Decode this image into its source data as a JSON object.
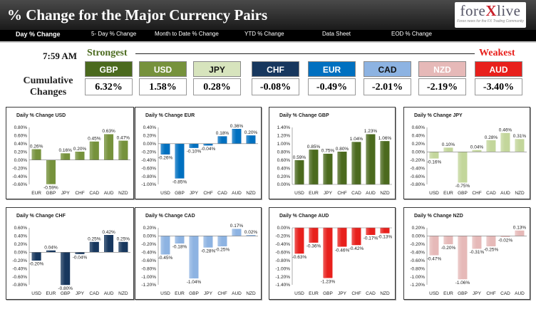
{
  "header": {
    "title": "% Change for the Major Currency Pairs"
  },
  "logo": {
    "prefix": "fore",
    "x": "X",
    "suffix": "live",
    "tagline": "Forex news for the FX Trading Community"
  },
  "nav": [
    "Day % Change",
    "5- Day % Change",
    "Month to Date % Change",
    "YTD % Change",
    "Data Sheet",
    "EOD % Change"
  ],
  "time": "7:59 AM",
  "strongest_label": "Strongest",
  "weakest_label": "Weakest",
  "cumulative_label": "Cumulative Changes",
  "cards": [
    {
      "name": "GBP",
      "value": "6.32%",
      "color": "#4b6a1e",
      "text": "#ffffff"
    },
    {
      "name": "USD",
      "value": "1.58%",
      "color": "#76923c",
      "text": "#ffffff"
    },
    {
      "name": "JPY",
      "value": "0.28%",
      "color": "#d7e4bd",
      "text": "#111111"
    },
    {
      "name": "CHF",
      "value": "-0.08%",
      "color": "#17375e",
      "text": "#ffffff"
    },
    {
      "name": "EUR",
      "value": "-0.49%",
      "color": "#0070c0",
      "text": "#ffffff"
    },
    {
      "name": "CAD",
      "value": "-2.01%",
      "color": "#8db3e2",
      "text": "#111111"
    },
    {
      "name": "NZD",
      "value": "-2.19%",
      "color": "#e6b9b8",
      "text": "#ffffff"
    },
    {
      "name": "AUD",
      "value": "-3.40%",
      "color": "#e8201c",
      "text": "#ffffff"
    }
  ],
  "chart_data": [
    {
      "type": "bar",
      "title": "Daily % Change USD",
      "categories": [
        "EUR",
        "GBP",
        "JPY",
        "CHF",
        "CAD",
        "AUD",
        "NZD"
      ],
      "values": [
        0.26,
        -0.59,
        0.16,
        0.2,
        0.45,
        0.63,
        0.47
      ],
      "labels": [
        "0.26%",
        "-0.59%",
        "0.16%",
        "0.20%",
        "0.45%",
        "0.63%",
        "0.47%"
      ],
      "ylim": [
        -0.6,
        0.8
      ],
      "step": 0.2,
      "decimals": 2,
      "color": "#76923c"
    },
    {
      "type": "bar",
      "title": "Daily % Change EUR",
      "categories": [
        "USD",
        "GBP",
        "JPY",
        "CHF",
        "CAD",
        "AUD",
        "NZD"
      ],
      "values": [
        -0.26,
        -0.85,
        -0.1,
        -0.04,
        0.18,
        0.36,
        0.2
      ],
      "labels": [
        "-0.26%",
        "-0.85%",
        "-0.10%",
        "-0.04%",
        "0.18%",
        "0.36%",
        "0.20%"
      ],
      "ylim": [
        -1.0,
        0.4
      ],
      "step": 0.2,
      "decimals": 2,
      "color": "#0070c0"
    },
    {
      "type": "bar",
      "title": "Daily % Change GBP",
      "categories": [
        "USD",
        "EUR",
        "JPY",
        "CHF",
        "CAD",
        "AUD",
        "NZD"
      ],
      "values": [
        0.59,
        0.85,
        0.75,
        0.8,
        1.04,
        1.23,
        1.06
      ],
      "labels": [
        "0.59%",
        "0.85%",
        "0.75%",
        "0.80%",
        "1.04%",
        "1.23%",
        "1.06%"
      ],
      "ylim": [
        0,
        1.4
      ],
      "step": 0.2,
      "decimals": 2,
      "color": "#4b6a1e"
    },
    {
      "type": "bar",
      "title": "Daily % Change JPY",
      "categories": [
        "USD",
        "EUR",
        "GBP",
        "CHF",
        "CAD",
        "AUD",
        "NZD"
      ],
      "values": [
        -0.16,
        0.1,
        -0.75,
        0.04,
        0.28,
        0.46,
        0.31
      ],
      "labels": [
        "-0.16%",
        "0.10%",
        "-0.75%",
        "0.04%",
        "0.28%",
        "0.46%",
        "0.31%"
      ],
      "ylim": [
        -0.8,
        0.6
      ],
      "step": 0.2,
      "decimals": 2,
      "color": "#c3d69b"
    },
    {
      "type": "bar",
      "title": "Daily % Change CHF",
      "categories": [
        "USD",
        "EUR",
        "GBP",
        "JPY",
        "CAD",
        "AUD",
        "NZD"
      ],
      "values": [
        -0.2,
        0.04,
        -0.8,
        -0.04,
        0.25,
        0.42,
        0.25
      ],
      "labels": [
        "-0.20%",
        "0.04%",
        "-0.80%",
        "-0.04%",
        "0.25%",
        "0.42%",
        "0.25%"
      ],
      "ylim": [
        -0.8,
        0.6
      ],
      "step": 0.2,
      "decimals": 2,
      "color": "#17375e"
    },
    {
      "type": "bar",
      "title": "Daily % Change CAD",
      "categories": [
        "USD",
        "EUR",
        "GBP",
        "JPY",
        "CHF",
        "AUD",
        "NZD"
      ],
      "values": [
        -0.45,
        -0.18,
        -1.04,
        -0.28,
        -0.25,
        0.17,
        0.02
      ],
      "labels": [
        "-0.45%",
        "-0.18%",
        "-1.04%",
        "-0.28%",
        "-0.25%",
        "0.17%",
        "0.02%"
      ],
      "ylim": [
        -1.2,
        0.2
      ],
      "step": 0.2,
      "decimals": 2,
      "color": "#8db3e2"
    },
    {
      "type": "bar",
      "title": "Daily % Change AUD",
      "categories": [
        "USD",
        "EUR",
        "GBP",
        "JPY",
        "CHF",
        "CAD",
        "NZD"
      ],
      "values": [
        -0.63,
        -0.36,
        -1.23,
        -0.46,
        -0.42,
        -0.17,
        -0.13
      ],
      "labels": [
        "-0.63%",
        "-0.36%",
        "-1.23%",
        "-0.46%",
        "-0.42%",
        "-0.17%",
        "-0.13%"
      ],
      "ylim": [
        -1.4,
        0
      ],
      "step": 0.2,
      "decimals": 2,
      "color": "#e8201c"
    },
    {
      "type": "bar",
      "title": "Daily % Change NZD",
      "categories": [
        "USD",
        "EUR",
        "GBP",
        "JPY",
        "CHF",
        "CAD",
        "AUD"
      ],
      "values": [
        -0.47,
        -0.2,
        -1.06,
        -0.31,
        -0.25,
        -0.02,
        0.13
      ],
      "labels": [
        "-0.47%",
        "-0.20%",
        "-1.06%",
        "-0.31%",
        "-0.25%",
        "-0.02%",
        "0.13%"
      ],
      "ylim": [
        -1.2,
        0.2
      ],
      "step": 0.2,
      "decimals": 2,
      "color": "#e6b9b8"
    }
  ]
}
